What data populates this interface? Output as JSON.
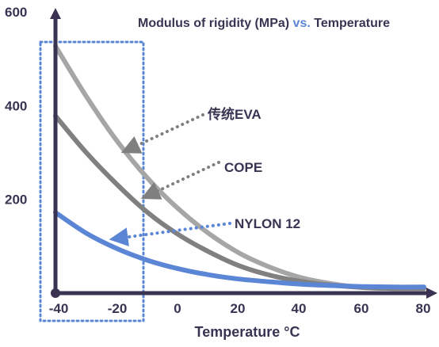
{
  "chart_data": {
    "type": "line",
    "title": {
      "part1": "Modulus of rigidity (MPa)",
      "part2": " vs.",
      "part3": " Temperature"
    },
    "xlabel": "Temperature °C",
    "ylabel": "",
    "xlim": [
      -45,
      82
    ],
    "ylim": [
      0,
      600
    ],
    "x_ticks": [
      "-40",
      "-20",
      "0",
      "20",
      "40",
      "60",
      "80"
    ],
    "y_ticks": [
      "200",
      "400",
      "600"
    ],
    "highlight_range": [
      -45,
      -10
    ],
    "series": [
      {
        "name": "传统EVA",
        "color": "#a6a6a6",
        "points": [
          [
            -40,
            527
          ],
          [
            -30,
            420
          ],
          [
            -20,
            325
          ],
          [
            -10,
            245
          ],
          [
            0,
            180
          ],
          [
            10,
            127
          ],
          [
            20,
            85
          ],
          [
            30,
            55
          ],
          [
            40,
            33
          ],
          [
            50,
            20
          ],
          [
            60,
            12
          ],
          [
            70,
            10
          ],
          [
            80,
            10
          ]
        ]
      },
      {
        "name": "COPE",
        "color": "#808080",
        "points": [
          [
            -40,
            378
          ],
          [
            -30,
            300
          ],
          [
            -20,
            232
          ],
          [
            -10,
            172
          ],
          [
            0,
            125
          ],
          [
            10,
            88
          ],
          [
            20,
            58
          ],
          [
            30,
            38
          ],
          [
            40,
            25
          ],
          [
            50,
            17
          ],
          [
            60,
            12
          ],
          [
            70,
            10
          ],
          [
            80,
            10
          ]
        ]
      },
      {
        "name": "NYLON 12",
        "color": "#5b86d6",
        "points": [
          [
            -40,
            172
          ],
          [
            -30,
            128
          ],
          [
            -20,
            95
          ],
          [
            -10,
            70
          ],
          [
            0,
            52
          ],
          [
            10,
            39
          ],
          [
            20,
            30
          ],
          [
            30,
            24
          ],
          [
            40,
            19
          ],
          [
            50,
            16
          ],
          [
            60,
            14
          ],
          [
            70,
            13
          ],
          [
            80,
            13
          ]
        ]
      }
    ],
    "annotations": [
      {
        "series": "传统EVA",
        "at_x": -27
      },
      {
        "series": "COPE",
        "at_x": -14
      },
      {
        "series": "NYLON 12",
        "at_x": -27
      }
    ],
    "colors": {
      "axis": "#3a3352",
      "title_dark": "#3a3352",
      "title_accent": "#5b86d6",
      "highlight_box": "#5b86d6",
      "leader_gray": "#7f7f7f",
      "leader_blue": "#5b86d6"
    }
  }
}
